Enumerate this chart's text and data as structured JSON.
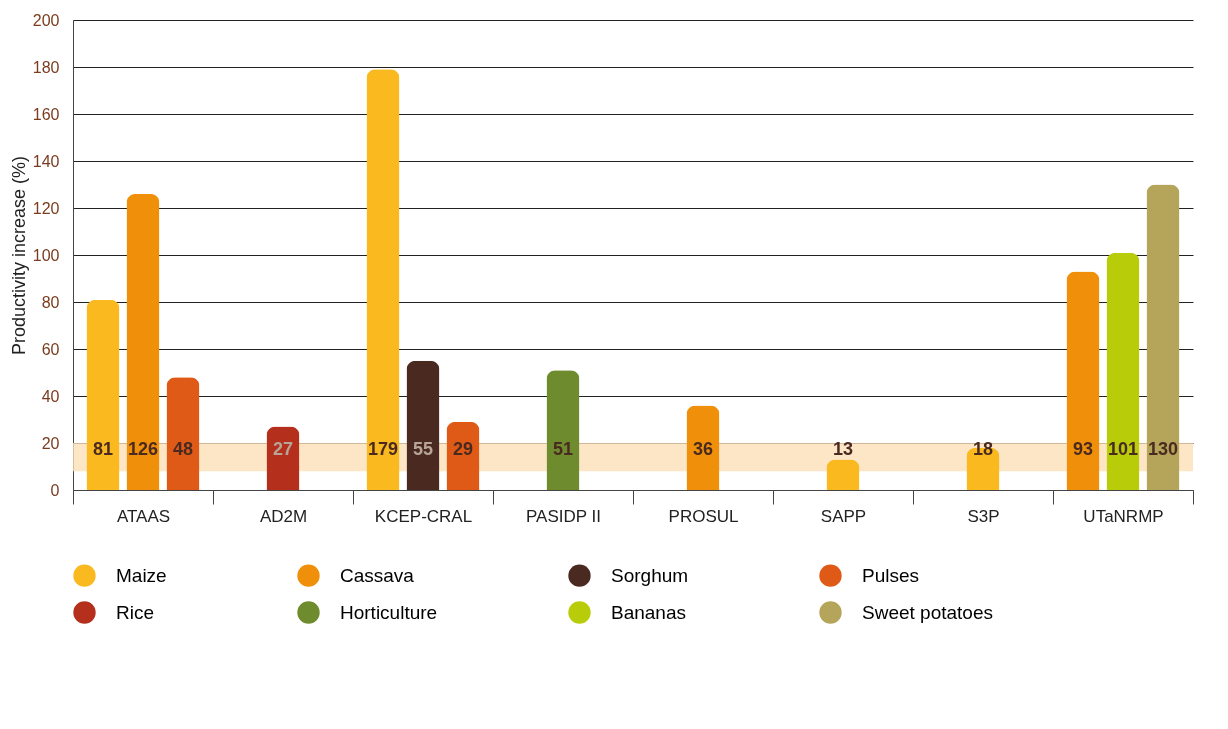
{
  "chart_data": {
    "type": "bar",
    "ylabel": "Productivity increase (%)",
    "categories": [
      "ATAAS",
      "AD2M",
      "KCEP-CRAL",
      "PASIDP II",
      "PROSUL",
      "SAPP",
      "S3P",
      "UTaNRMP"
    ],
    "series": [
      {
        "name": "Maize",
        "color": "#f9b91f",
        "values": [
          81,
          null,
          179,
          null,
          null,
          13,
          18,
          null
        ]
      },
      {
        "name": "Cassava",
        "color": "#f0900a",
        "values": [
          126,
          null,
          null,
          null,
          36,
          null,
          null,
          93
        ]
      },
      {
        "name": "Sorghum",
        "color": "#4a2a20",
        "values": [
          null,
          null,
          55,
          null,
          null,
          null,
          null,
          null
        ]
      },
      {
        "name": "Pulses",
        "color": "#e05a17",
        "values": [
          48,
          null,
          29,
          null,
          null,
          null,
          null,
          null
        ]
      },
      {
        "name": "Rice",
        "color": "#b5301c",
        "values": [
          null,
          27,
          null,
          null,
          null,
          null,
          null,
          null
        ]
      },
      {
        "name": "Horticulture",
        "color": "#6e8c2e",
        "values": [
          null,
          null,
          null,
          51,
          null,
          null,
          null,
          null
        ]
      },
      {
        "name": "Bananas",
        "color": "#b9cc0a",
        "values": [
          null,
          null,
          null,
          null,
          null,
          null,
          null,
          101
        ]
      },
      {
        "name": "Sweet potatoes",
        "color": "#b5a55a",
        "values": [
          null,
          null,
          null,
          null,
          null,
          null,
          null,
          130
        ]
      }
    ],
    "ylim": [
      0,
      200
    ],
    "yticks": [
      0,
      20,
      40,
      60,
      80,
      100,
      120,
      140,
      160,
      180,
      200
    ],
    "bands": [
      {
        "axis": "y",
        "from": 8,
        "to": 20,
        "color": "#fde0b8"
      }
    ],
    "grid": "y",
    "data_labels": true,
    "legend": "bottom"
  }
}
